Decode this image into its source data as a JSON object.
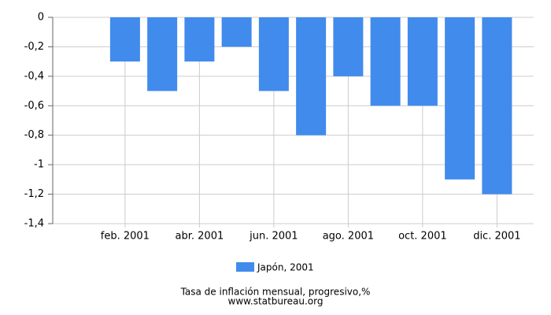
{
  "chart_data": {
    "type": "bar",
    "categories": [
      null,
      "feb. 2001",
      null,
      "abr. 2001",
      null,
      "jun. 2001",
      null,
      "ago. 2001",
      null,
      "oct. 2001",
      null,
      "dic. 2001"
    ],
    "series": [
      {
        "name": "Japón, 2001",
        "color": "#418bed",
        "values": [
          0,
          -0.3,
          -0.5,
          -0.3,
          -0.2,
          -0.5,
          -0.8,
          -0.4,
          -0.6,
          -0.6,
          -1.1,
          -1.2
        ]
      }
    ],
    "ylim": [
      -1.4,
      0
    ],
    "yticks": [
      0,
      {
        "value": -0.2,
        "label": "-0,2"
      },
      {
        "value": -0.4,
        "label": "-0,4"
      },
      {
        "value": -0.6,
        "label": "-0,6"
      },
      {
        "value": -0.8,
        "label": "-0,8"
      },
      {
        "value": -1,
        "label": "-1"
      },
      {
        "value": -1.2,
        "label": "-1,2"
      },
      {
        "value": -1.4,
        "label": "-1,4"
      }
    ],
    "grid": true,
    "xlabel": "Tasa de inflación mensual, progresivo,%",
    "source": "www.statbureau.org"
  }
}
